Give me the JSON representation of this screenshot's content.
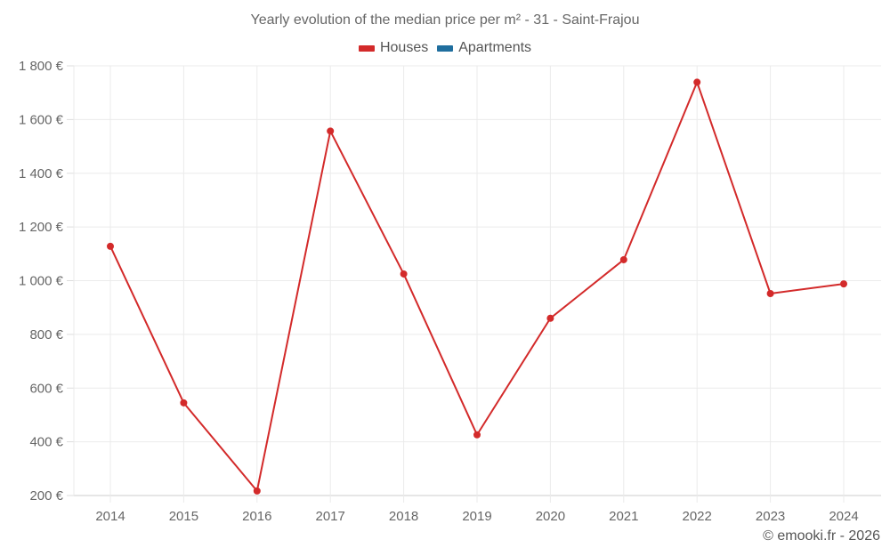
{
  "chart_data": {
    "type": "line",
    "title": "Yearly evolution of the median price per m² - 31 - Saint-Frajou",
    "categories": [
      "2014",
      "2015",
      "2016",
      "2017",
      "2018",
      "2019",
      "2020",
      "2021",
      "2022",
      "2023",
      "2024"
    ],
    "series": [
      {
        "name": "Houses",
        "color": "#d32a2a",
        "values": [
          1128,
          545,
          217,
          1557,
          1025,
          426,
          860,
          1078,
          1739,
          952,
          988
        ]
      },
      {
        "name": "Apartments",
        "color": "#1f6e9e",
        "values": []
      }
    ],
    "xlabel": "",
    "ylabel": "",
    "ylim": [
      200,
      1800
    ],
    "yticks": [
      200,
      400,
      600,
      800,
      1000,
      1200,
      1400,
      1600,
      1800
    ],
    "ytick_labels": [
      "200 €",
      "400 €",
      "600 €",
      "800 €",
      "1 000 €",
      "1 200 €",
      "1 400 €",
      "1 600 €",
      "1 800 €"
    ],
    "grid": true,
    "legend_position": "top"
  },
  "header": {
    "title": "Yearly evolution of the median price per m² - 31 - Saint-Frajou"
  },
  "legend": {
    "items": [
      {
        "label": "Houses",
        "color": "#d32a2a"
      },
      {
        "label": "Apartments",
        "color": "#1f6e9e"
      }
    ]
  },
  "footer": {
    "credit": "© emooki.fr - 2026"
  }
}
